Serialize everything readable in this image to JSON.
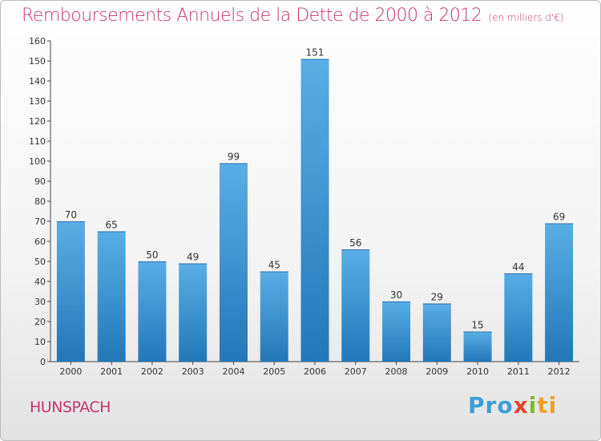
{
  "header": {
    "title": "Remboursements Annuels de la Dette de 2000 à 2012",
    "subtitle": "(en milliers d'€)"
  },
  "footer": {
    "city": "HUNSPACH",
    "logo_parts": [
      "Pro",
      "x",
      "i",
      "ti"
    ]
  },
  "colors": {
    "title": "#c8336f",
    "bar_top": "#5aaee6",
    "bar_bottom": "#2377b8"
  },
  "chart_data": {
    "type": "bar",
    "title": "Remboursements Annuels de la Dette de 2000 à 2012",
    "categories": [
      "2000",
      "2001",
      "2002",
      "2003",
      "2004",
      "2005",
      "2006",
      "2007",
      "2008",
      "2009",
      "2010",
      "2011",
      "2012"
    ],
    "values": [
      70,
      65,
      50,
      49,
      99,
      45,
      151,
      56,
      30,
      29,
      15,
      44,
      69
    ],
    "ylim": [
      0,
      160
    ],
    "yticks": [
      0,
      10,
      20,
      30,
      40,
      50,
      60,
      70,
      80,
      90,
      100,
      110,
      120,
      130,
      140,
      150,
      160
    ],
    "grid": false,
    "xlabel": "",
    "ylabel": ""
  }
}
